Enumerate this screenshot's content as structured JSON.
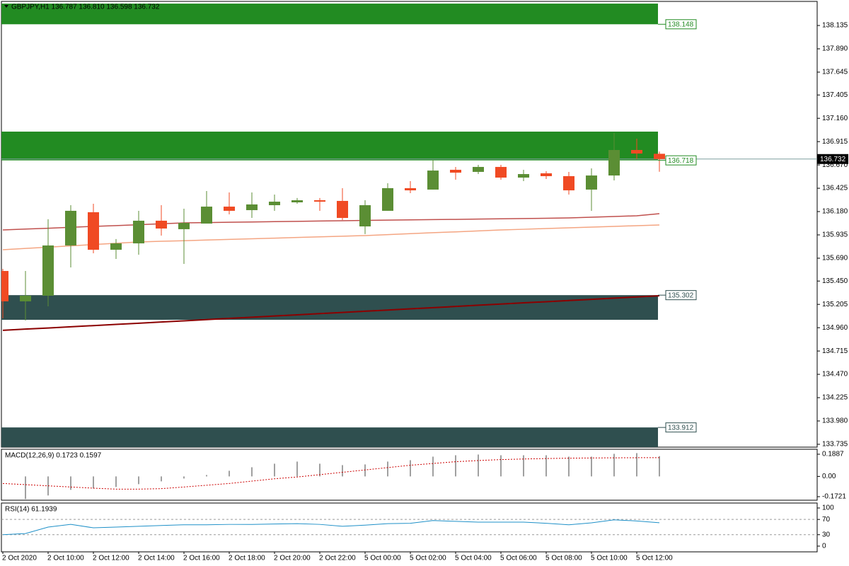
{
  "chart_data": [
    {
      "type": "candlestick",
      "title": "GBPJPY,H1  136.787 136.810 136.598 136.732",
      "categories": [
        "2 Oct 2020",
        null,
        "2 Oct 10:00",
        null,
        "2 Oct 12:00",
        null,
        "2 Oct 14:00",
        null,
        "2 Oct 16:00",
        null,
        "2 Oct 18:00",
        null,
        "2 Oct 20:00",
        null,
        "2 Oct 22:00",
        null,
        "5 Oct 00:00",
        null,
        "5 Oct 02:00",
        null,
        "5 Oct 04:00",
        null,
        "5 Oct 06:00",
        null,
        "5 Oct 08:00",
        null,
        "5 Oct 10:00",
        null,
        "5 Oct 12:00",
        null
      ],
      "open": [
        135.556,
        135.237,
        135.296,
        135.824,
        136.173,
        135.779,
        135.846,
        136.084,
        135.995,
        136.054,
        136.232,
        136.195,
        136.247,
        136.277,
        136.299,
        136.292,
        136.024,
        136.188,
        136.426,
        136.411,
        136.619,
        136.597,
        136.649,
        136.537,
        136.582,
        136.552,
        136.411,
        136.559,
        136.827,
        136.787
      ],
      "high": [
        135.578,
        135.556,
        136.099,
        136.247,
        136.262,
        135.891,
        136.188,
        136.247,
        136.21,
        136.396,
        136.381,
        136.381,
        136.359,
        136.322,
        136.322,
        136.426,
        136.299,
        136.478,
        136.5,
        136.723,
        136.649,
        136.671,
        136.671,
        136.619,
        136.604,
        136.597,
        136.634,
        137.005,
        136.946,
        136.81
      ],
      "low": [
        135.058,
        135.036,
        135.184,
        135.593,
        135.742,
        135.682,
        135.727,
        135.928,
        135.63,
        136.054,
        136.151,
        136.113,
        136.188,
        136.262,
        136.188,
        136.091,
        135.943,
        136.188,
        136.374,
        136.411,
        136.515,
        136.574,
        136.515,
        136.5,
        136.522,
        136.359,
        136.188,
        136.507,
        136.73,
        136.598
      ],
      "close": [
        135.237,
        135.296,
        135.824,
        136.188,
        135.779,
        135.846,
        136.084,
        136.002,
        136.061,
        136.232,
        136.188,
        136.255,
        136.284,
        136.299,
        136.284,
        136.113,
        136.247,
        136.426,
        136.403,
        136.611,
        136.589,
        136.649,
        136.537,
        136.574,
        136.552,
        136.403,
        136.559,
        136.827,
        136.79,
        136.732
      ],
      "up_color": "#5b8e34",
      "down_color": "#f04a23",
      "ylim": [
        133.705,
        138.388
      ],
      "yticks": [
        138.135,
        {
          "value": 137.89,
          "label": "137.890"
        },
        137.645,
        137.405,
        {
          "value": 137.16,
          "label": "137.160"
        },
        136.915,
        {
          "value": 136.67,
          "label": "136.670"
        },
        136.425,
        {
          "value": 136.18,
          "label": "136.180"
        },
        135.935,
        {
          "value": 135.69,
          "label": "135.690"
        },
        {
          "value": 135.45,
          "label": "135.450"
        },
        135.205,
        {
          "value": 134.96,
          "label": "134.960"
        },
        134.715,
        {
          "value": 134.47,
          "label": "134.470"
        },
        134.225,
        {
          "value": 133.98,
          "label": "133.980"
        },
        133.735
      ],
      "zones": [
        {
          "top": 138.365,
          "bottom": 138.148,
          "tagged": "bottom",
          "color": "#228b22",
          "tag_color": "#228b22"
        },
        {
          "top": 137.02,
          "bottom": 136.718,
          "tagged": "bottom",
          "color": "#228b22",
          "tag_color": "#228b22"
        },
        {
          "top": 135.302,
          "bottom": 135.043,
          "tagged": "top",
          "color": "#2f4f4f",
          "tag_color": "#2f4f4f"
        },
        {
          "top": 133.912,
          "bottom": 133.705,
          "tagged": "top",
          "color": "#2f4f4f",
          "tag_color": "#2f4f4f"
        }
      ],
      "lines": [
        {
          "color": "#c0504d",
          "values": [
            135.987,
            135.996,
            136.005,
            136.015,
            136.024,
            136.033,
            136.042,
            136.052,
            136.061,
            136.064,
            136.068,
            136.071,
            136.074,
            136.077,
            136.081,
            136.084,
            136.087,
            136.09,
            136.093,
            136.096,
            136.098,
            136.101,
            136.104,
            136.107,
            136.11,
            136.113,
            136.121,
            136.128,
            136.136,
            136.158
          ]
        },
        {
          "color": "#f4a582",
          "values": [
            135.779,
            135.793,
            135.806,
            135.82,
            135.834,
            135.847,
            135.861,
            135.868,
            135.874,
            135.881,
            135.888,
            135.894,
            135.901,
            135.908,
            135.915,
            135.921,
            135.928,
            135.938,
            135.948,
            135.958,
            135.967,
            135.977,
            135.987,
            135.994,
            136.002,
            136.009,
            136.017,
            136.024,
            136.032,
            136.039
          ]
        },
        {
          "color": "#8b0000",
          "values": [
            134.932,
            134.945,
            134.957,
            134.97,
            134.982,
            134.995,
            135.007,
            135.02,
            135.032,
            135.045,
            135.058,
            135.07,
            135.083,
            135.095,
            135.108,
            135.12,
            135.133,
            135.145,
            135.158,
            135.17,
            135.183,
            135.196,
            135.208,
            135.221,
            135.233,
            135.246,
            135.258,
            135.271,
            135.283,
            135.296
          ]
        }
      ],
      "current_price": 136.732
    },
    {
      "type": "macd",
      "title": "MACD(12,26,9) 0.1723 0.1597",
      "histogram": [
        null,
        -0.192,
        -0.162,
        -0.114,
        -0.102,
        -0.09,
        -0.066,
        -0.042,
        -0.018,
        0.012,
        0.048,
        0.078,
        0.108,
        0.126,
        0.108,
        0.096,
        0.102,
        0.126,
        0.138,
        0.168,
        0.18,
        0.186,
        0.18,
        0.18,
        0.18,
        0.168,
        0.168,
        0.192,
        0.198,
        0.1723
      ],
      "signal": [
        -0.06,
        -0.07,
        -0.08,
        -0.09,
        -0.1,
        -0.108,
        -0.108,
        -0.104,
        -0.09,
        -0.075,
        -0.06,
        -0.04,
        -0.02,
        -0.005,
        0.015,
        0.035,
        0.055,
        0.075,
        0.095,
        0.11,
        0.125,
        0.135,
        0.143,
        0.148,
        0.152,
        0.155,
        0.157,
        0.158,
        0.159,
        0.1597
      ],
      "histogram_color": "#a0a0a0",
      "signal_color": "#cc0000",
      "ylim": [
        -0.2022,
        0.2308
      ],
      "yticks": [
        0.1887,
        {
          "value": 0,
          "label": "0.00"
        },
        -0.1721
      ]
    },
    {
      "type": "rsi",
      "title": "RSI(14) 61.1939",
      "values": [
        30,
        33,
        50,
        57,
        48,
        50,
        52,
        54,
        56,
        56,
        57,
        57,
        58,
        59,
        57,
        52,
        55,
        59,
        60,
        67,
        65,
        63,
        63,
        63,
        60,
        56,
        61,
        69,
        66,
        61.1939
      ],
      "color": "#1e90c8",
      "levels": [
        70,
        30
      ],
      "ylim": [
        -15,
        113
      ],
      "yticks": [
        100,
        70,
        30,
        0
      ]
    }
  ]
}
